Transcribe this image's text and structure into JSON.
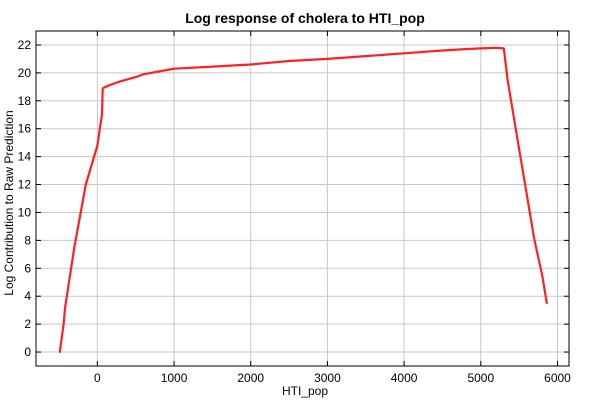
{
  "chart_data": {
    "type": "line",
    "title": "Log response of cholera to HTI_pop",
    "xlabel": "HTI_pop",
    "ylabel": "Log Contribution to Raw Prediction",
    "xlim": [
      -800,
      6150
    ],
    "ylim": [
      -1,
      23
    ],
    "xticks": [
      0,
      1000,
      2000,
      3000,
      4000,
      5000,
      6000
    ],
    "yticks": [
      0,
      2,
      4,
      6,
      8,
      10,
      12,
      14,
      16,
      18,
      20,
      22
    ],
    "grid": true,
    "colors": {
      "line": "#ff2020"
    },
    "series": [
      {
        "x": [
          -490,
          -440,
          -420,
          -300,
          -150,
          0,
          40,
          60,
          70,
          150,
          300,
          500,
          600,
          800,
          1000,
          1500,
          2000,
          2500,
          3000,
          3500,
          4000,
          4500,
          4800,
          5000,
          5200,
          5300,
          5350,
          5500,
          5700,
          5800,
          5860
        ],
        "values": [
          0.0,
          2.0,
          3.2,
          7.5,
          12.0,
          14.8,
          16.3,
          17.0,
          18.9,
          19.1,
          19.4,
          19.7,
          19.9,
          20.1,
          20.3,
          20.45,
          20.6,
          20.85,
          21.0,
          21.2,
          21.4,
          21.6,
          21.7,
          21.75,
          21.8,
          21.75,
          19.5,
          14.5,
          8.0,
          5.5,
          3.5
        ]
      }
    ]
  }
}
